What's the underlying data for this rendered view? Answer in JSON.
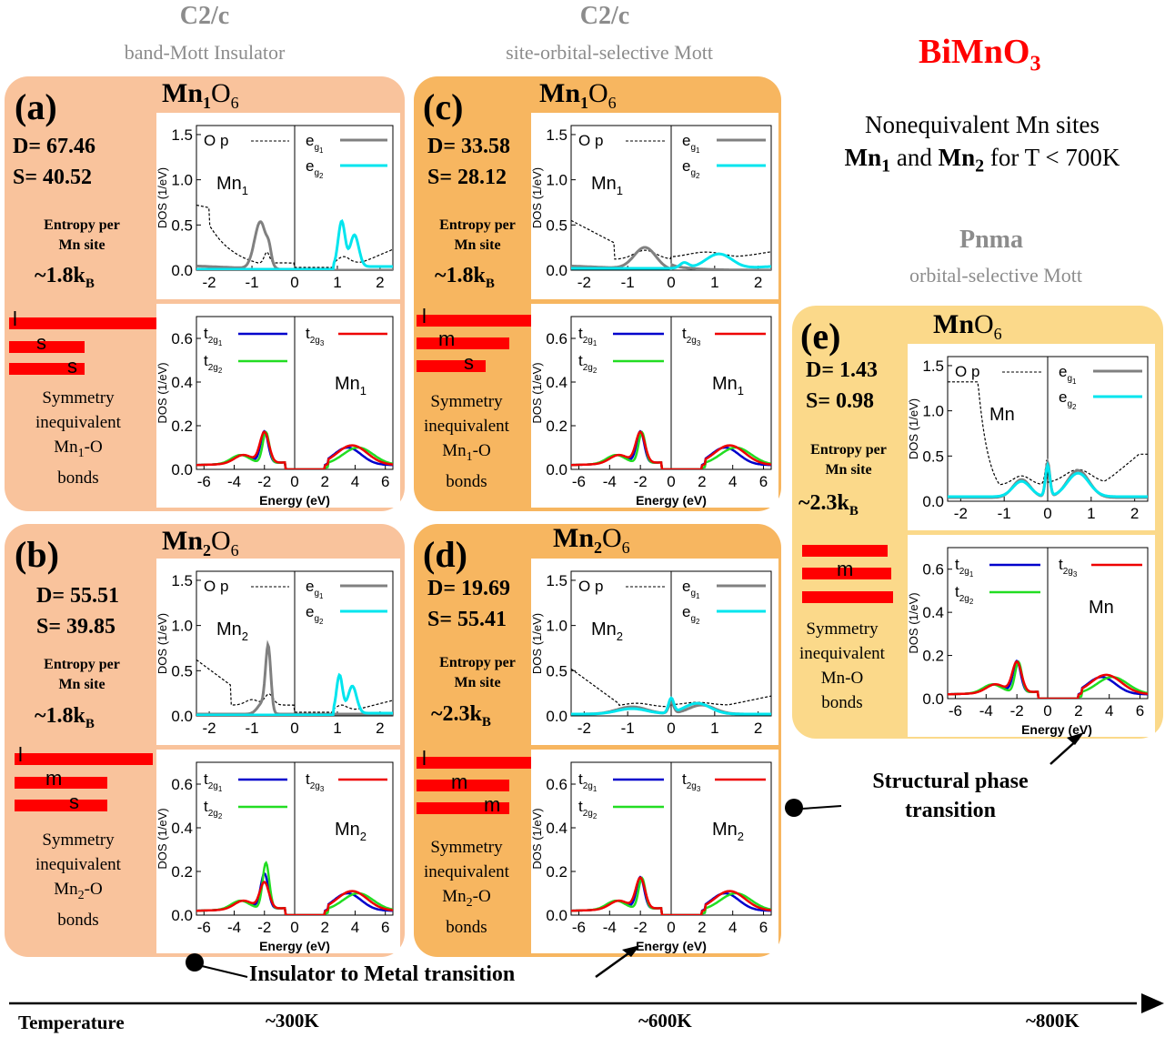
{
  "colors": {
    "bimno3": "#ff0000",
    "panel_light": "#f9c39c",
    "panel_mid": "#f7b660",
    "panel_yellow": "#fbd98a",
    "op": "#000000",
    "eg1": "#808080",
    "eg2": "#00e5ee",
    "t2g1": "#0000cc",
    "t2g2": "#22dd22",
    "t2g3": "#ee0000"
  },
  "header": {
    "col1_group": "C2/c",
    "col1_desc": "band-Mott Insulator",
    "col2_group": "C2/c",
    "col2_desc": "site-orbital-selective Mott",
    "compound": "BiMnO",
    "compound_sub": "3",
    "nonequiv_line1": "Nonequivalent Mn sites",
    "nonequiv_mn1": "Mn",
    "nonequiv_mn1_sub": "1",
    "nonequiv_and": " and ",
    "nonequiv_mn2": "Mn",
    "nonequiv_mn2_sub": "2",
    "nonequiv_tail": " for T < 700K",
    "col3_group": "Pnma",
    "col3_desc": "orbital-selective Mott"
  },
  "panels": {
    "a": {
      "label": "(a)",
      "title_main": "Mn",
      "title_sub": "1",
      "title_rest": "O",
      "title_rest_sub": "6",
      "D": "D= 67.46",
      "S": "S= 40.52",
      "entropy1": "Entropy per",
      "entropy2": "Mn site",
      "kb": "~1.8k",
      "kb_sub": "B",
      "bars": [
        "l",
        "s",
        "s"
      ],
      "sym1": "Symmetry",
      "sym2": "inequivalent",
      "sym3": "Mn",
      "sym3_sub": "1",
      "sym3_rest": "-O",
      "sym4": "bonds",
      "site": "Mn",
      "site_sub": "1"
    },
    "b": {
      "label": "(b)",
      "title_main": "Mn",
      "title_sub": "2",
      "title_rest": "O",
      "title_rest_sub": "6",
      "D": "D= 55.51",
      "S": "S= 39.85",
      "entropy1": "Entropy per",
      "entropy2": "Mn site",
      "kb": "~1.8k",
      "kb_sub": "B",
      "bars": [
        "l",
        "m",
        "s"
      ],
      "sym1": "Symmetry",
      "sym2": "inequivalent",
      "sym3": "Mn",
      "sym3_sub": "2",
      "sym3_rest": "-O",
      "sym4": "bonds",
      "site": "Mn",
      "site_sub": "2"
    },
    "c": {
      "label": "(c)",
      "title_main": "Mn",
      "title_sub": "1",
      "title_rest": "O",
      "title_rest_sub": "6",
      "D": "D= 33.58",
      "S": "S= 28.12",
      "entropy1": "Entropy per",
      "entropy2": "Mn site",
      "kb": "~1.8k",
      "kb_sub": "B",
      "bars": [
        "l",
        "m",
        "s"
      ],
      "sym1": "Symmetry",
      "sym2": "inequivalent",
      "sym3": "Mn",
      "sym3_sub": "1",
      "sym3_rest": "-O",
      "sym4": "bonds",
      "site": "Mn",
      "site_sub": "1"
    },
    "d": {
      "label": "(d)",
      "title_main": "Mn",
      "title_sub": "2",
      "title_rest": "O",
      "title_rest_sub": "6",
      "D": "D= 19.69",
      "S": "S= 55.41",
      "entropy1": "Entropy per",
      "entropy2": "Mn site",
      "kb": "~2.3k",
      "kb_sub": "B",
      "bars": [
        "l",
        "m",
        "m"
      ],
      "sym1": "Symmetry",
      "sym2": "inequivalent",
      "sym3": "Mn",
      "sym3_sub": "2",
      "sym3_rest": "-O",
      "sym4": "bonds",
      "site": "Mn",
      "site_sub": "2"
    },
    "e": {
      "label": "(e)",
      "title_main": "Mn",
      "title_sub": "",
      "title_rest": "O",
      "title_rest_sub": "6",
      "D": "D= 1.43",
      "S": "S= 0.98",
      "entropy1": "Entropy per",
      "entropy2": "Mn site",
      "kb": "~2.3k",
      "kb_sub": "B",
      "bars": [
        "m"
      ],
      "sym1": "Symmetry",
      "sym2": "inequivalent",
      "sym3": "Mn",
      "sym3_sub": "",
      "sym3_rest": "-O",
      "sym4": "bonds",
      "site": "Mn",
      "site_sub": ""
    }
  },
  "plot_text": {
    "ylabel": "DOS (1/eV)",
    "xlabel": "Energy (eV)",
    "op": "O p",
    "eg": "e",
    "g1": "g",
    "g1n": "1",
    "g2n": "2",
    "t2g": "t",
    "t2gsub": "2g"
  },
  "axes": {
    "eg_x": {
      "min": -2.3,
      "max": 2.3,
      "ticks": [
        "-2",
        "-1",
        "0",
        "1",
        "2"
      ]
    },
    "eg_y": {
      "min": 0,
      "max": 1.6,
      "ticks": [
        "0.0",
        "0.5",
        "1.0",
        "1.5"
      ]
    },
    "t2g_x": {
      "min": -6.5,
      "max": 6.5,
      "ticks": [
        "-6",
        "-4",
        "-2",
        "0",
        "2",
        "4",
        "6"
      ]
    },
    "t2g_y": {
      "min": 0,
      "max": 0.7,
      "ticks": [
        "0.0",
        "0.2",
        "0.4",
        "0.6"
      ]
    }
  },
  "annotations": {
    "ins_metal": "Insulator to Metal transition",
    "struct1": "Structural phase",
    "struct2": "transition"
  },
  "temperature": {
    "label": "Temperature",
    "t300": "~300K",
    "t600": "~600K",
    "t800": "~800K"
  }
}
